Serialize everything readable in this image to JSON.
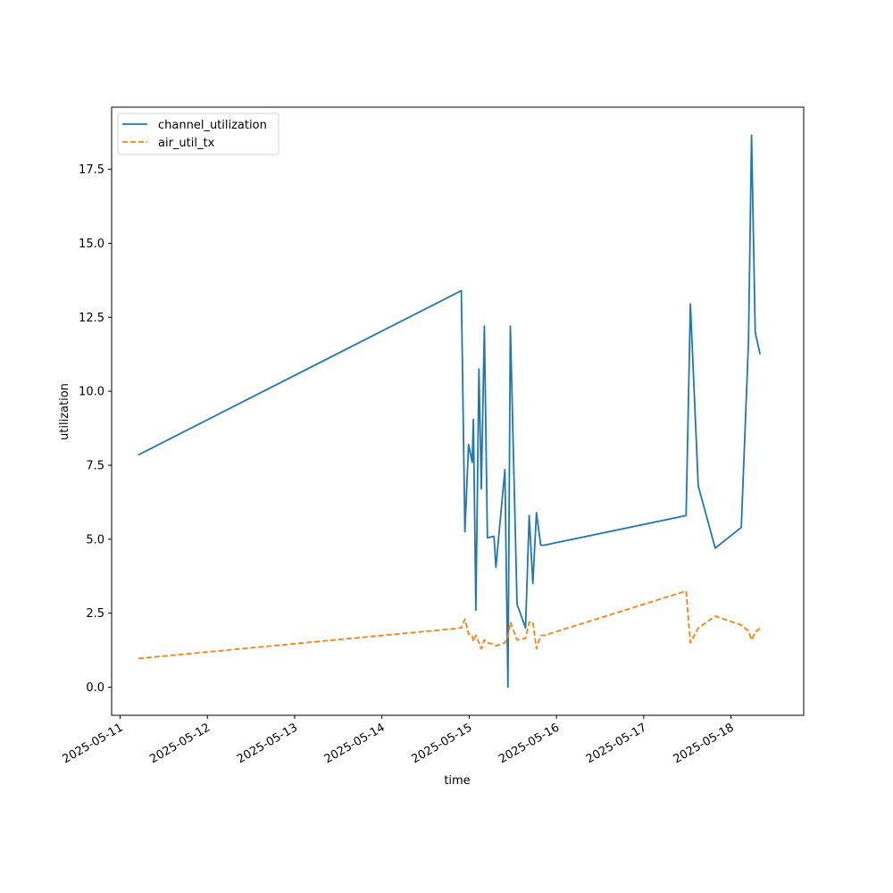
{
  "chart_data": {
    "type": "line",
    "title": "",
    "xlabel": "time",
    "ylabel": "utilization",
    "x_ticks": [
      "2025-05-11",
      "2025-05-12",
      "2025-05-13",
      "2025-05-14",
      "2025-05-15",
      "2025-05-16",
      "2025-05-17",
      "2025-05-18"
    ],
    "y_ticks": [
      "0.0",
      "2.5",
      "5.0",
      "7.5",
      "10.0",
      "12.5",
      "15.0",
      "17.5"
    ],
    "xlim": [
      "2025-05-10 21:40",
      "2025-05-18 20:00"
    ],
    "ylim": [
      -0.95,
      19.6
    ],
    "grid": false,
    "legend_position": "top-left",
    "series": [
      {
        "name": "channel_utilization",
        "color": "#1f77b4",
        "style": "solid",
        "x": [
          "2025-05-11 05:00",
          "2025-05-14 21:50",
          "2025-05-14 22:50",
          "2025-05-14 23:50",
          "2025-05-15 00:50",
          "2025-05-15 01:10",
          "2025-05-15 01:50",
          "2025-05-15 02:40",
          "2025-05-15 03:20",
          "2025-05-15 04:10",
          "2025-05-15 05:00",
          "2025-05-15 06:50",
          "2025-05-15 07:20",
          "2025-05-15 09:50",
          "2025-05-15 10:40",
          "2025-05-15 11:20",
          "2025-05-15 13:10",
          "2025-05-15 15:30",
          "2025-05-15 16:30",
          "2025-05-15 17:30",
          "2025-05-15 18:30",
          "2025-05-15 19:40",
          "2025-05-15 20:40",
          "2025-05-17 11:40",
          "2025-05-17 12:50",
          "2025-05-17 15:00",
          "2025-05-17 19:40",
          "2025-05-18 02:50",
          "2025-05-18 04:50",
          "2025-05-18 05:40",
          "2025-05-18 06:40",
          "2025-05-18 08:00"
        ],
        "y": [
          7.85,
          13.4,
          5.25,
          8.2,
          7.6,
          9.05,
          2.6,
          10.75,
          6.7,
          12.2,
          5.05,
          5.1,
          4.05,
          7.35,
          0.0,
          12.2,
          2.8,
          2.0,
          5.8,
          3.5,
          5.9,
          4.8,
          4.8,
          5.8,
          12.95,
          6.8,
          4.7,
          5.4,
          11.7,
          18.65,
          12.0,
          11.25
        ]
      },
      {
        "name": "air_util_tx",
        "color": "#ff7f0e",
        "style": "dashed",
        "x": [
          "2025-05-11 05:00",
          "2025-05-14 21:50",
          "2025-05-14 22:50",
          "2025-05-14 23:50",
          "2025-05-15 00:50",
          "2025-05-15 01:10",
          "2025-05-15 01:50",
          "2025-05-15 02:40",
          "2025-05-15 03:20",
          "2025-05-15 04:10",
          "2025-05-15 05:00",
          "2025-05-15 06:50",
          "2025-05-15 07:20",
          "2025-05-15 09:50",
          "2025-05-15 10:40",
          "2025-05-15 11:20",
          "2025-05-15 13:10",
          "2025-05-15 15:30",
          "2025-05-15 16:30",
          "2025-05-15 17:30",
          "2025-05-15 18:30",
          "2025-05-15 19:40",
          "2025-05-15 20:40",
          "2025-05-17 11:40",
          "2025-05-17 12:50",
          "2025-05-17 15:00",
          "2025-05-17 19:40",
          "2025-05-18 02:50",
          "2025-05-18 04:50",
          "2025-05-18 05:40",
          "2025-05-18 06:40",
          "2025-05-18 08:00"
        ],
        "y": [
          0.97,
          2.0,
          2.3,
          1.8,
          1.75,
          1.55,
          1.75,
          1.5,
          1.3,
          1.6,
          1.5,
          1.45,
          1.4,
          1.5,
          1.7,
          2.2,
          1.6,
          1.65,
          2.2,
          2.2,
          1.3,
          1.75,
          1.75,
          3.25,
          1.5,
          2.0,
          2.4,
          2.1,
          1.9,
          1.6,
          1.85,
          2.0
        ]
      }
    ]
  }
}
